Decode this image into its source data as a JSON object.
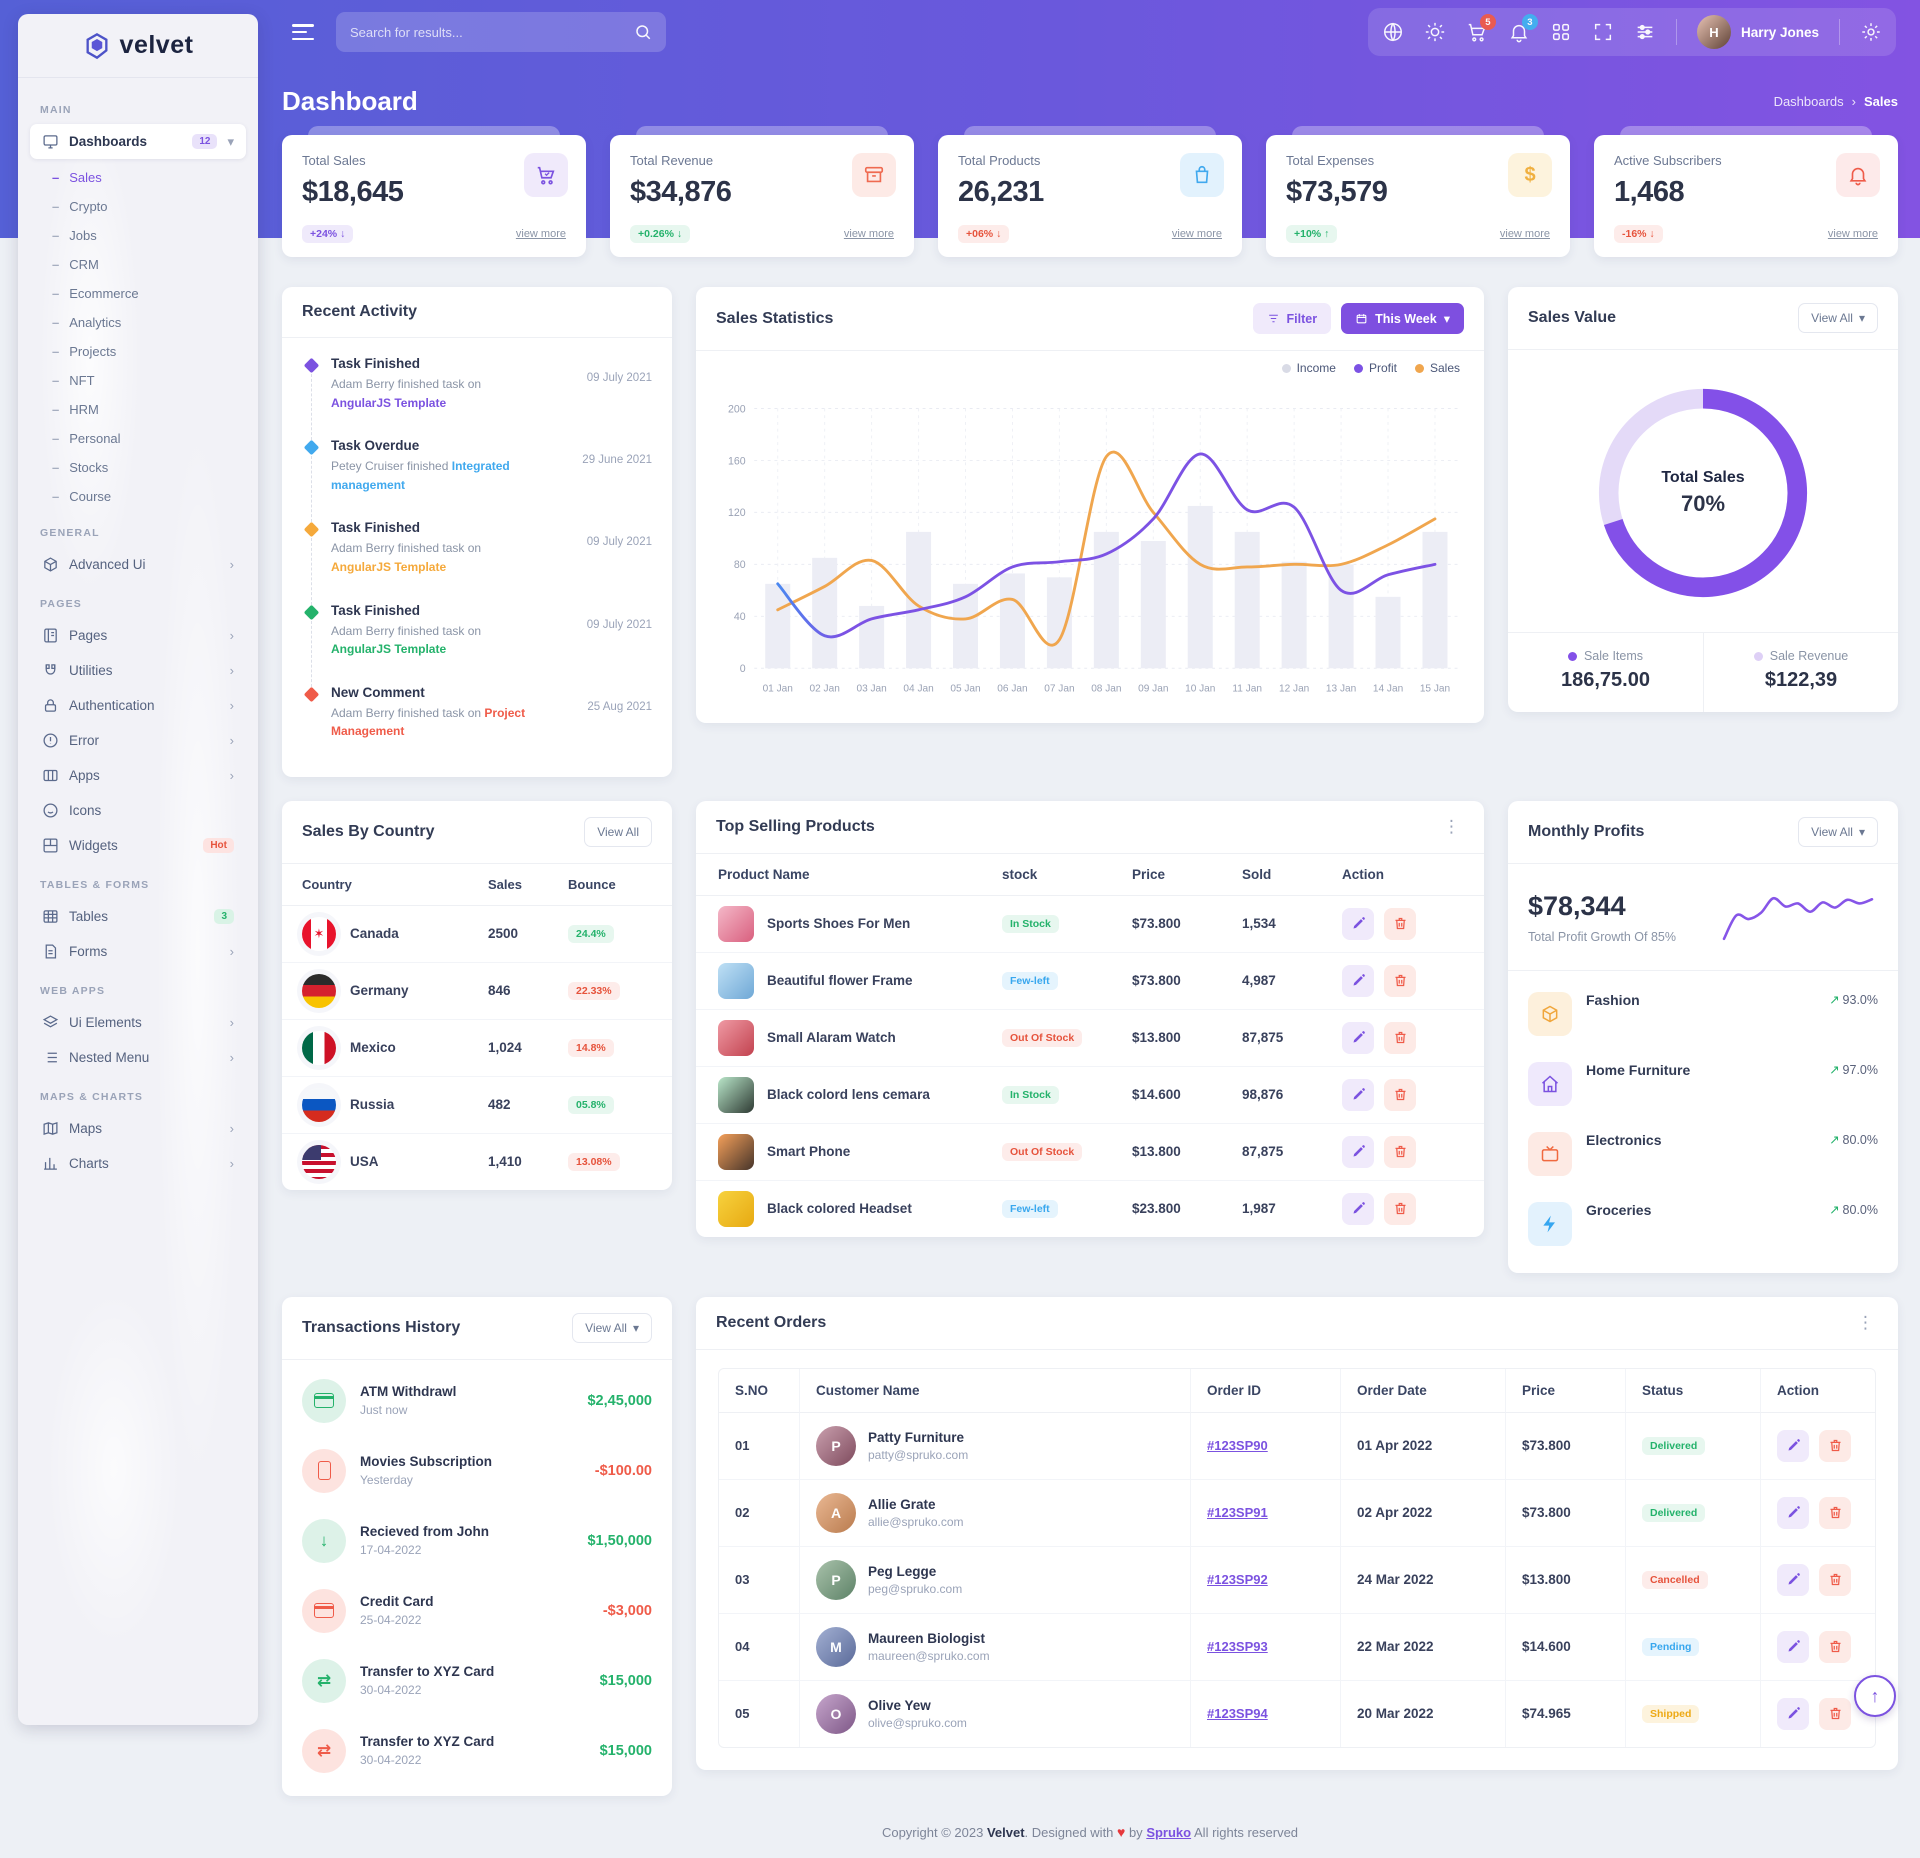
{
  "brand": "velvet",
  "topbar": {
    "search_placeholder": "Search for results...",
    "cart_badge": "5",
    "bell_badge": "3",
    "user_name": "Harry Jones",
    "user_initial": "H"
  },
  "page": {
    "title": "Dashboard",
    "breadcrumb_parent": "Dashboards",
    "breadcrumb_sep": "›",
    "breadcrumb_current": "Sales"
  },
  "sidebar": {
    "sec_main": "MAIN",
    "sec_general": "GENERAL",
    "sec_pages": "PAGES",
    "sec_tables": "TABLES & FORMS",
    "sec_webapps": "WEB APPS",
    "sec_maps": "MAPS & CHARTS",
    "dashboards": "Dashboards",
    "dashboards_badge": "12",
    "subitems": [
      {
        "label": "Sales",
        "active": "1"
      },
      {
        "label": "Crypto"
      },
      {
        "label": "Jobs"
      },
      {
        "label": "CRM"
      },
      {
        "label": "Ecommerce"
      },
      {
        "label": "Analytics"
      },
      {
        "label": "Projects"
      },
      {
        "label": "NFT"
      },
      {
        "label": "HRM"
      },
      {
        "label": "Personal"
      },
      {
        "label": "Stocks"
      },
      {
        "label": "Course"
      }
    ],
    "advanced_ui": "Advanced Ui",
    "pages": "Pages",
    "utilities": "Utilities",
    "authentication": "Authentication",
    "error": "Error",
    "apps": "Apps",
    "icons": "Icons",
    "widgets": "Widgets",
    "widgets_badge": "Hot",
    "tables": "Tables",
    "tables_badge": "3",
    "forms": "Forms",
    "ui_elements": "Ui Elements",
    "nested_menu": "Nested Menu",
    "maps": "Maps",
    "charts": "Charts"
  },
  "stat_cards": [
    {
      "label": "Total Sales",
      "value": "$18,645",
      "change": "+24% ↓",
      "tone": "purple",
      "view": "view more"
    },
    {
      "label": "Total Revenue",
      "value": "$34,876",
      "change": "+0.26% ↓",
      "tone": "green",
      "view": "view more"
    },
    {
      "label": "Total Products",
      "value": "26,231",
      "change": "+06% ↓",
      "tone": "red",
      "view": "view more"
    },
    {
      "label": "Total Expenses",
      "value": "$73,579",
      "change": "+10% ↑",
      "tone": "green",
      "view": "view more"
    },
    {
      "label": "Active Subscribers",
      "value": "1,468",
      "change": "-16% ↓",
      "tone": "red",
      "view": "view more"
    }
  ],
  "recent_activity": {
    "title": "Recent Activity",
    "items": [
      {
        "title": "Task Finished",
        "prefix": "Adam Berry finished task on ",
        "link": "AngularJS Template",
        "tone": "purple",
        "date": "09 July 2021"
      },
      {
        "title": "Task Overdue",
        "prefix": "Petey Cruiser finished ",
        "link": "Integrated management",
        "tone": "blue",
        "date": "29 June 2021"
      },
      {
        "title": "Task Finished",
        "prefix": "Adam Berry finished task on ",
        "link": "AngularJS Template",
        "tone": "orange",
        "date": "09 July 2021"
      },
      {
        "title": "Task Finished",
        "prefix": "Adam Berry finished task on ",
        "link": "AngularJS Template",
        "tone": "green",
        "date": "09 July 2021"
      },
      {
        "title": "New Comment",
        "prefix": "Adam Berry finished task on ",
        "link": "Project Management",
        "tone": "red",
        "date": "25 Aug 2021"
      }
    ]
  },
  "sales_statistics": {
    "title": "Sales Statistics",
    "filter_label": "Filter",
    "range_label": "This Week",
    "chart_data": {
      "type": "bar+line",
      "categories": [
        "01 Jan",
        "02 Jan",
        "03 Jan",
        "04 Jan",
        "05 Jan",
        "06 Jan",
        "07 Jan",
        "08 Jan",
        "09 Jan",
        "10 Jan",
        "11 Jan",
        "12 Jan",
        "13 Jan",
        "14 Jan",
        "15 Jan"
      ],
      "yticks": [
        0,
        40,
        80,
        120,
        160,
        200
      ],
      "ylim": [
        0,
        200
      ],
      "legend_position": "top-right",
      "series": [
        {
          "name": "Income",
          "type": "bar",
          "color": "#ecedf5",
          "values": [
            65,
            85,
            48,
            105,
            65,
            73,
            70,
            105,
            98,
            125,
            105,
            82,
            80,
            55,
            105
          ]
        },
        {
          "name": "Profit",
          "type": "line",
          "color": "#7c52e4",
          "values": [
            65,
            25,
            38,
            45,
            55,
            78,
            82,
            88,
            115,
            165,
            122,
            124,
            60,
            72,
            80
          ]
        },
        {
          "name": "Sales",
          "type": "line",
          "color": "#f0a64e",
          "values": [
            45,
            63,
            83,
            48,
            38,
            53,
            22,
            163,
            120,
            80,
            78,
            80,
            80,
            95,
            115
          ]
        }
      ]
    }
  },
  "sales_value": {
    "title": "Sales Value",
    "view_all": "View All",
    "percent": 70,
    "center_label": "Total Sales",
    "center_value": "70%",
    "ring_color": "#8350e8",
    "ring_rest_color": "#e4daf8",
    "legend": [
      {
        "label": "Sale Items",
        "value": "186,75.00",
        "color": "#8350e8"
      },
      {
        "label": "Sale Revenue",
        "value": "$122,39",
        "color": "#ded0f6"
      }
    ]
  },
  "sales_by_country": {
    "title": "Sales By Country",
    "view_all": "View All",
    "columns": [
      "Country",
      "Sales",
      "Bounce"
    ],
    "rows": [
      {
        "country": "Canada",
        "sales": "2500",
        "bounce": "24.4%",
        "tone": "green",
        "flag": "canada"
      },
      {
        "country": "Germany",
        "sales": "846",
        "bounce": "22.33%",
        "tone": "red",
        "flag": "germany"
      },
      {
        "country": "Mexico",
        "sales": "1,024",
        "bounce": "14.8%",
        "tone": "red",
        "flag": "mexico"
      },
      {
        "country": "Russia",
        "sales": "482",
        "bounce": "05.8%",
        "tone": "green",
        "flag": "russia"
      },
      {
        "country": "USA",
        "sales": "1,410",
        "bounce": "13.08%",
        "tone": "red",
        "flag": "usa"
      }
    ]
  },
  "top_products": {
    "title": "Top Selling Products",
    "columns": [
      "Product Name",
      "stock",
      "Price",
      "Sold",
      "Action"
    ],
    "rows": [
      {
        "name": "Sports Shoes For Men",
        "stock": "In Stock",
        "tone": "green",
        "price": "$73.800",
        "sold": "1,534",
        "thumb": "shoes"
      },
      {
        "name": "Beautiful flower Frame",
        "stock": "Few-left",
        "tone": "blue",
        "price": "$73.800",
        "sold": "4,987",
        "thumb": "frame"
      },
      {
        "name": "Small Alaram Watch",
        "stock": "Out Of Stock",
        "tone": "red",
        "price": "$13.800",
        "sold": "87,875",
        "thumb": "watch"
      },
      {
        "name": "Black colord lens cemara",
        "stock": "In Stock",
        "tone": "green",
        "price": "$14.600",
        "sold": "98,876",
        "thumb": "camera"
      },
      {
        "name": "Smart Phone",
        "stock": "Out Of Stock",
        "tone": "red",
        "price": "$13.800",
        "sold": "87,875",
        "thumb": "phone"
      },
      {
        "name": "Black colored Headset",
        "stock": "Few-left",
        "tone": "blue",
        "price": "$23.800",
        "sold": "1,987",
        "thumb": "headset"
      }
    ]
  },
  "monthly_profits": {
    "title": "Monthly Profits",
    "view_all": "View All",
    "value": "$78,344",
    "caption": "Total Profit Growth Of 85%",
    "spark": [
      10,
      55,
      48,
      60,
      88,
      72,
      78,
      62,
      80,
      70,
      85,
      78,
      86
    ],
    "items": [
      {
        "label": "Fashion",
        "percent": "93.0%",
        "width": "93",
        "color": "#f5a93b",
        "icon": "cube"
      },
      {
        "label": "Home Furniture",
        "percent": "97.0%",
        "width": "97",
        "color": "#7b52e0",
        "icon": "home"
      },
      {
        "label": "Electronics",
        "percent": "80.0%",
        "width": "80",
        "color": "#f0693f",
        "icon": "tv"
      },
      {
        "label": "Groceries",
        "percent": "80.0%",
        "width": "80",
        "color": "#35a6f0",
        "icon": "bolt"
      }
    ]
  },
  "transactions": {
    "title": "Transactions History",
    "view_all": "View All",
    "rows": [
      {
        "title": "ATM Withdrawl",
        "date": "Just now",
        "amount": "$2,45,000",
        "amount_tone": "green",
        "type": "card",
        "tone": "green",
        "glyph": ""
      },
      {
        "title": "Movies Subscription",
        "date": "Yesterday",
        "amount": "-$100.00",
        "amount_tone": "red",
        "type": "mobile",
        "tone": "red",
        "glyph": ""
      },
      {
        "title": "Recieved from John",
        "date": "17-04-2022",
        "amount": "$1,50,000",
        "amount_tone": "green",
        "type": "glyph",
        "tone": "green",
        "glyph": "↓"
      },
      {
        "title": "Credit Card",
        "date": "25-04-2022",
        "amount": "-$3,000",
        "amount_tone": "red",
        "type": "card",
        "tone": "red",
        "glyph": ""
      },
      {
        "title": "Transfer to XYZ Card",
        "date": "30-04-2022",
        "amount": "$15,000",
        "amount_tone": "green",
        "type": "glyph",
        "tone": "green",
        "glyph": "⇄"
      },
      {
        "title": "Transfer to XYZ Card",
        "date": "30-04-2022",
        "amount": "$15,000",
        "amount_tone": "green",
        "type": "glyph",
        "tone": "red",
        "glyph": "⇄"
      }
    ]
  },
  "recent_orders": {
    "title": "Recent Orders",
    "columns": [
      "S.NO",
      "Customer Name",
      "Order ID",
      "Order Date",
      "Price",
      "Status",
      "Action"
    ],
    "rows": [
      {
        "sn": "01",
        "name": "Patty Furniture",
        "email": "patty@spruko.com",
        "initial": "P",
        "av": "av1",
        "order_id": "#123SP90",
        "date": "01 Apr 2022",
        "price": "$73.800",
        "status": "Delivered",
        "tone": "green"
      },
      {
        "sn": "02",
        "name": "Allie Grate",
        "email": "allie@spruko.com",
        "initial": "A",
        "av": "av2",
        "order_id": "#123SP91",
        "date": "02 Apr 2022",
        "price": "$73.800",
        "status": "Delivered",
        "tone": "green"
      },
      {
        "sn": "03",
        "name": "Peg Legge",
        "email": "peg@spruko.com",
        "initial": "P",
        "av": "av3",
        "order_id": "#123SP92",
        "date": "24 Mar 2022",
        "price": "$13.800",
        "status": "Cancelled",
        "tone": "red"
      },
      {
        "sn": "04",
        "name": "Maureen Biologist",
        "email": "maureen@spruko.com",
        "initial": "M",
        "av": "av4",
        "order_id": "#123SP93",
        "date": "22 Mar 2022",
        "price": "$14.600",
        "status": "Pending",
        "tone": "blue"
      },
      {
        "sn": "05",
        "name": "Olive Yew",
        "email": "olive@spruko.com",
        "initial": "O",
        "av": "av5",
        "order_id": "#123SP94",
        "date": "20 Mar 2022",
        "price": "$74.965",
        "status": "Shipped",
        "tone": "yellow"
      }
    ]
  },
  "footer": {
    "pre": "Copyright © 2023 ",
    "brand": "Velvet",
    "mid": ". Designed with ",
    "heart": "♥",
    "by": " by ",
    "spruko": "Spruko",
    "post": " All rights reserved"
  }
}
